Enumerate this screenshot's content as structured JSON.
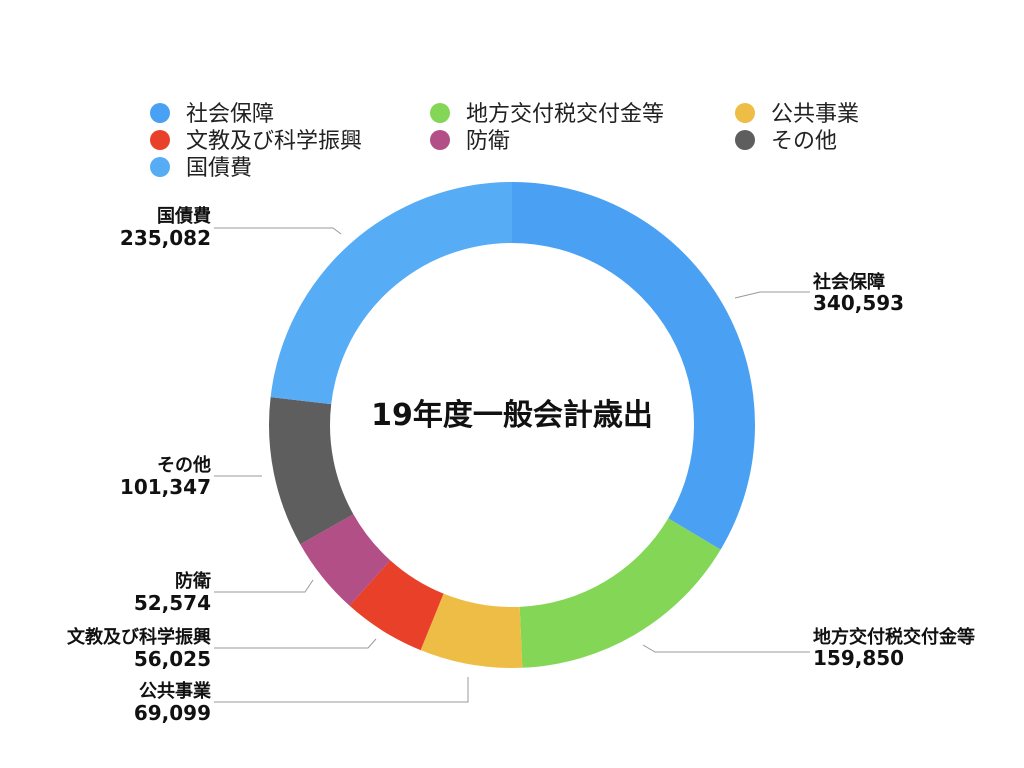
{
  "chart_data": {
    "type": "pie",
    "variant": "donut",
    "title": "19年度一般会計歳出",
    "legend_position": "top",
    "categories": [
      "社会保障",
      "地方交付税交付金等",
      "公共事業",
      "文教及び科学振興",
      "防衛",
      "その他",
      "国債費"
    ],
    "values": [
      340593,
      159850,
      69099,
      56025,
      52574,
      101347,
      235082
    ],
    "value_labels": [
      "340,593",
      "159,850",
      "69,099",
      "56,025",
      "52,574",
      "101,347",
      "235,082"
    ],
    "colors": [
      "#4aa0f3",
      "#84d657",
      "#eebd45",
      "#e84029",
      "#b24f86",
      "#5e5e5e",
      "#56acf5"
    ],
    "legend_order": [
      "社会保障",
      "地方交付税交付金等",
      "公共事業",
      "文教及び科学振興",
      "防衛",
      "その他",
      "国債費"
    ]
  }
}
